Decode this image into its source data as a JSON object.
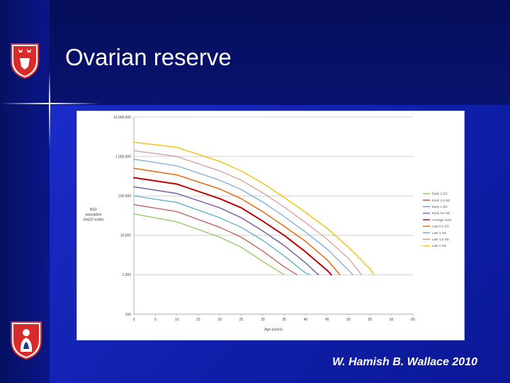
{
  "slide": {
    "title": "Ovarian reserve",
    "footer": "W. Hamish B. Wallace 2010"
  },
  "colors": {
    "crest_red": "#d92b2b",
    "crest_white": "#ffffff"
  },
  "chart_data": {
    "type": "line",
    "ylabel_lines": [
      "NGF",
      "population",
      "(log10 scale)"
    ],
    "xlabel": "Age (years)",
    "x_ticks": [
      0,
      5,
      10,
      15,
      20,
      25,
      30,
      35,
      40,
      45,
      50,
      55,
      60,
      65
    ],
    "y_ticks": [
      {
        "value": 100,
        "label": "100"
      },
      {
        "value": 1000,
        "label": "1,000"
      },
      {
        "value": 10000,
        "label": "10,000"
      },
      {
        "value": 100000,
        "label": "100,000"
      },
      {
        "value": 1000000,
        "label": "1,000,000"
      },
      {
        "value": 10000000,
        "label": "10,000,000"
      }
    ],
    "xlim": [
      0,
      65
    ],
    "ylim": [
      100,
      10000000
    ],
    "y_scale": "log",
    "grid": true,
    "legend_position": "right",
    "series": [
      {
        "name": "Early 2 SD",
        "color": "#8ac44e",
        "width": 1.2,
        "points": [
          [
            0,
            35000
          ],
          [
            10,
            22000
          ],
          [
            20,
            9000
          ],
          [
            25,
            5000
          ],
          [
            30,
            2200
          ],
          [
            35,
            1000
          ]
        ]
      },
      {
        "name": "Early 1.5 SD",
        "color": "#c0504d",
        "width": 1.2,
        "points": [
          [
            0,
            60000
          ],
          [
            10,
            40000
          ],
          [
            20,
            16000
          ],
          [
            25,
            9000
          ],
          [
            30,
            4000
          ],
          [
            35,
            1600
          ],
          [
            38,
            1000
          ]
        ]
      },
      {
        "name": "Early 1 SD",
        "color": "#4bacc6",
        "width": 1.2,
        "points": [
          [
            0,
            100000
          ],
          [
            10,
            68000
          ],
          [
            20,
            28000
          ],
          [
            25,
            16000
          ],
          [
            30,
            7500
          ],
          [
            35,
            3000
          ],
          [
            40,
            1100
          ],
          [
            41,
            1000
          ]
        ]
      },
      {
        "name": "Early 0.5 SD",
        "color": "#7b5ea7",
        "width": 1.5,
        "points": [
          [
            0,
            170000
          ],
          [
            10,
            115000
          ],
          [
            20,
            50000
          ],
          [
            25,
            28000
          ],
          [
            30,
            13000
          ],
          [
            35,
            5500
          ],
          [
            40,
            2000
          ],
          [
            43,
            1000
          ]
        ]
      },
      {
        "name": "Average case",
        "color": "#c00000",
        "width": 2.0,
        "points": [
          [
            0,
            290000
          ],
          [
            10,
            200000
          ],
          [
            20,
            85000
          ],
          [
            25,
            50000
          ],
          [
            30,
            23000
          ],
          [
            35,
            10000
          ],
          [
            40,
            3800
          ],
          [
            45,
            1300
          ],
          [
            46,
            1000
          ]
        ]
      },
      {
        "name": "Late 0.5 SD",
        "color": "#e36c09",
        "width": 1.5,
        "points": [
          [
            0,
            500000
          ],
          [
            10,
            340000
          ],
          [
            20,
            150000
          ],
          [
            25,
            85000
          ],
          [
            30,
            40000
          ],
          [
            35,
            17000
          ],
          [
            40,
            7000
          ],
          [
            45,
            2400
          ],
          [
            48,
            1000
          ]
        ]
      },
      {
        "name": "Late 1 SD",
        "color": "#6fa8dc",
        "width": 1.2,
        "points": [
          [
            0,
            850000
          ],
          [
            10,
            580000
          ],
          [
            20,
            250000
          ],
          [
            25,
            145000
          ],
          [
            30,
            70000
          ],
          [
            35,
            30000
          ],
          [
            40,
            12000
          ],
          [
            45,
            4500
          ],
          [
            50,
            1300
          ],
          [
            51,
            1000
          ]
        ]
      },
      {
        "name": "Late 1.5 SD",
        "color": "#d99694",
        "width": 1.2,
        "points": [
          [
            0,
            1400000
          ],
          [
            10,
            1000000
          ],
          [
            20,
            430000
          ],
          [
            25,
            250000
          ],
          [
            30,
            120000
          ],
          [
            35,
            52000
          ],
          [
            40,
            21000
          ],
          [
            45,
            8000
          ],
          [
            50,
            2600
          ],
          [
            53,
            1000
          ]
        ]
      },
      {
        "name": "Late 2 SD",
        "color": "#f0c419",
        "width": 1.5,
        "points": [
          [
            0,
            2300000
          ],
          [
            10,
            1700000
          ],
          [
            20,
            750000
          ],
          [
            25,
            430000
          ],
          [
            30,
            210000
          ],
          [
            35,
            92000
          ],
          [
            40,
            38000
          ],
          [
            45,
            15000
          ],
          [
            50,
            5000
          ],
          [
            55,
            1400
          ],
          [
            56,
            1000
          ]
        ]
      }
    ]
  }
}
